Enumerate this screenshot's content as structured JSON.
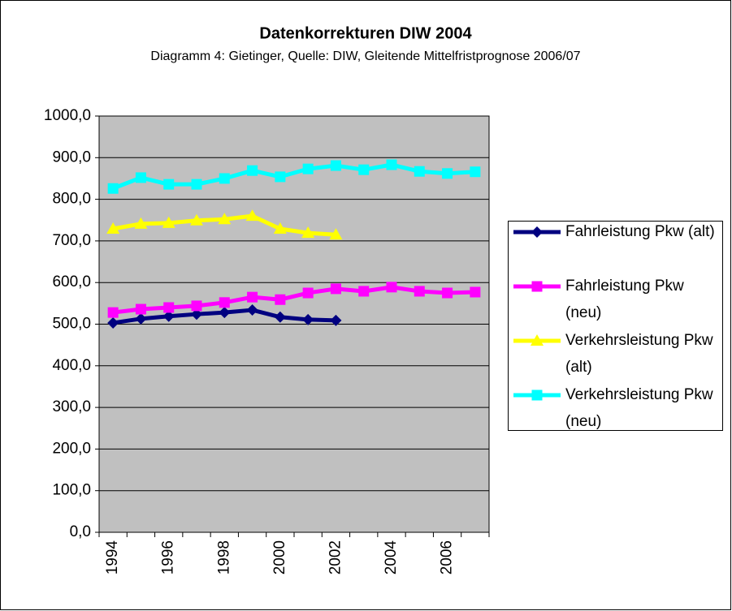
{
  "chart_data": {
    "type": "line",
    "title": "Datenkorrekturen DIW 2004",
    "subtitle": "Diagramm 4: Gietinger, Quelle: DIW, Gleitende Mittelfristprognose 2006/07",
    "categories": [
      "1994",
      null,
      "1996",
      null,
      "1998",
      null,
      "2000",
      null,
      "2002",
      null,
      "2004",
      null,
      "2006",
      null
    ],
    "series": [
      {
        "name": "Fahrleistung Pkw (alt)",
        "color": "#000080",
        "marker": "diamond",
        "values": [
          503,
          513,
          519,
          524,
          528,
          534,
          517,
          511,
          509,
          null,
          null,
          null,
          null,
          null
        ]
      },
      {
        "name": "Fahrleistung Pkw (neu)",
        "color": "#ff00ff",
        "marker": "square",
        "values": [
          528,
          536,
          540,
          544,
          552,
          565,
          559,
          575,
          585,
          579,
          589,
          579,
          575,
          577
        ]
      },
      {
        "name": "Verkehrsleistung Pkw (alt)",
        "color": "#ffff00",
        "marker": "triangle",
        "values": [
          729,
          741,
          743,
          749,
          752,
          760,
          729,
          719,
          715,
          null,
          null,
          null,
          null,
          null
        ]
      },
      {
        "name": "Verkehrsleistung Pkw (neu)",
        "color": "#00ffff",
        "marker": "square",
        "values": [
          826,
          852,
          836,
          836,
          850,
          869,
          854,
          873,
          881,
          871,
          883,
          867,
          862,
          866
        ]
      }
    ],
    "ylim": [
      0,
      1000
    ],
    "yticks": [
      {
        "value": 0,
        "label": "0,0"
      },
      {
        "value": 100,
        "label": "100,0"
      },
      {
        "value": 200,
        "label": "200,0"
      },
      {
        "value": 300,
        "label": "300,0"
      },
      {
        "value": 400,
        "label": "400,0"
      },
      {
        "value": 500,
        "label": "500,0"
      },
      {
        "value": 600,
        "label": "600,0"
      },
      {
        "value": 700,
        "label": "700,0"
      },
      {
        "value": 800,
        "label": "800,0"
      },
      {
        "value": 900,
        "label": "900,0"
      },
      {
        "value": 1000,
        "label": "1000,0"
      }
    ],
    "grid": true,
    "legend": "right"
  }
}
